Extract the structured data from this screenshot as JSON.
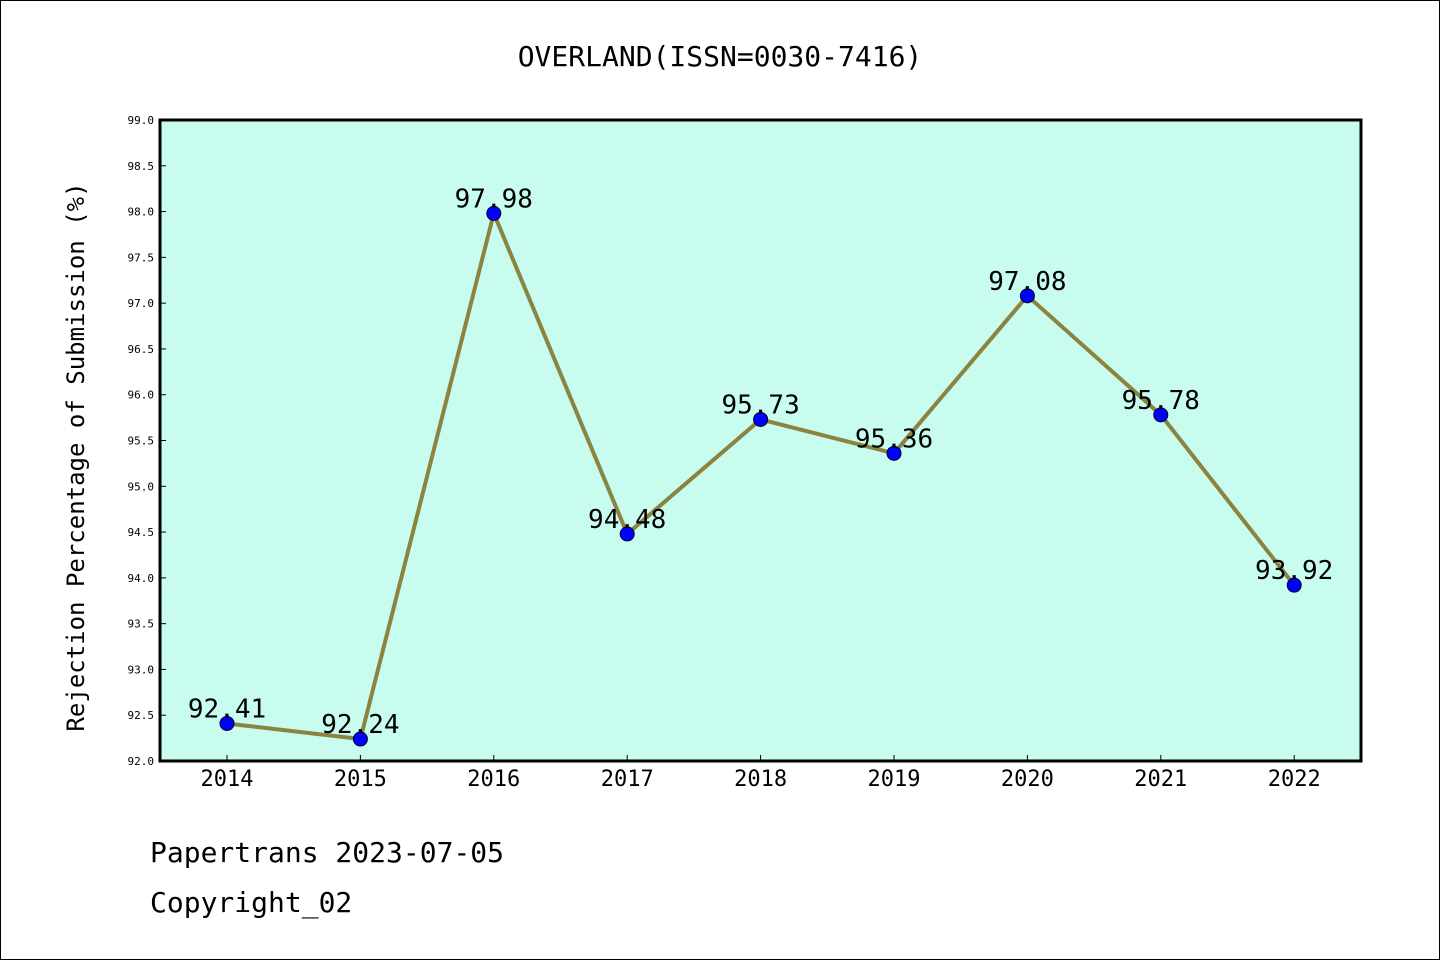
{
  "chart_data": {
    "type": "line",
    "title": "OVERLAND(ISSN=0030-7416)",
    "xlabel": "",
    "ylabel": "Rejection Percentage of Submission (%)",
    "categories": [
      "2014",
      "2015",
      "2016",
      "2017",
      "2018",
      "2019",
      "2020",
      "2021",
      "2022"
    ],
    "series": [
      {
        "values": [
          92.41,
          92.24,
          97.98,
          94.48,
          95.73,
          95.36,
          97.08,
          95.78,
          93.92
        ],
        "data_labels": [
          "92.41",
          "92.24",
          "97.98",
          "94.48",
          "95.73",
          "95.36",
          "97.08",
          "95.78",
          "93.92"
        ]
      }
    ],
    "ylim": [
      92.0,
      99.0
    ],
    "yticks": [
      "92.0",
      "92.5",
      "93.0",
      "93.5",
      "94.0",
      "94.5",
      "95.0",
      "95.5",
      "96.0",
      "96.5",
      "97.0",
      "97.5",
      "98.0",
      "98.5",
      "99.0"
    ],
    "grid": false,
    "legend": "none",
    "colors": {
      "plot_background": "#c8fcee",
      "line": "#8b8340",
      "marker": "#0000ff"
    }
  },
  "footer": {
    "line1": "Papertrans 2023-07-05",
    "line2": "Copyright_02"
  }
}
